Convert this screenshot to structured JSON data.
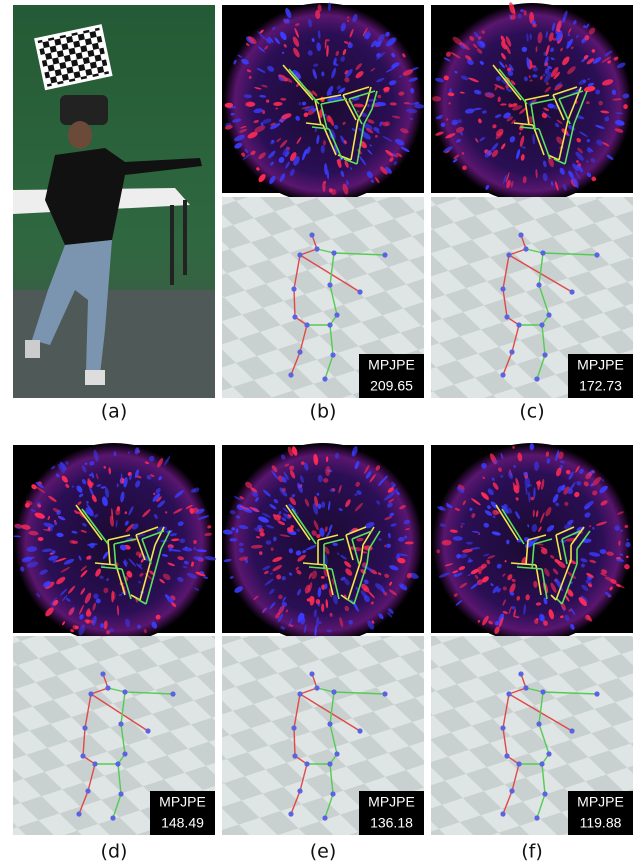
{
  "panels": [
    {
      "label": "(a)"
    },
    {
      "label": "(b)",
      "metric": "MPJPE",
      "value": "209.65"
    },
    {
      "label": "(c)",
      "metric": "MPJPE",
      "value": "172.73"
    },
    {
      "label": "(d)",
      "metric": "MPJPE",
      "value": "148.49"
    },
    {
      "label": "(e)",
      "metric": "MPJPE",
      "value": "136.18"
    },
    {
      "label": "(f)",
      "metric": "MPJPE",
      "value": "119.88"
    }
  ]
}
